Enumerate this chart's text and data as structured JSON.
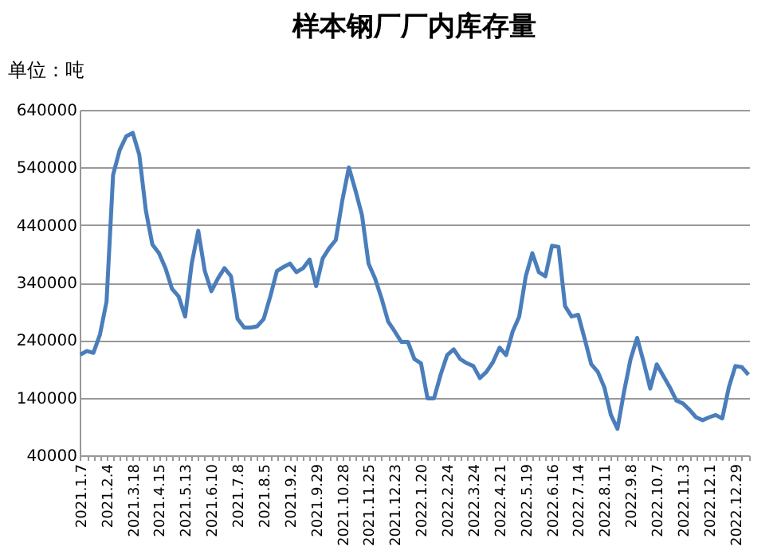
{
  "chart_data": {
    "type": "line",
    "title": "样本钢厂厂内库存量",
    "annotations": [
      "单位：吨"
    ],
    "categories": [
      "2021.1.7",
      null,
      null,
      null,
      "2021.2.4",
      null,
      null,
      null,
      "2021.3.18",
      null,
      null,
      null,
      "2021.4.15",
      null,
      null,
      null,
      "2021.5.13",
      null,
      null,
      null,
      "2021.6.10",
      null,
      null,
      null,
      "2021.7.8",
      null,
      null,
      null,
      "2021.8.5",
      null,
      null,
      null,
      "2021.9.2",
      null,
      null,
      null,
      "2021.9.29",
      null,
      null,
      null,
      "2021.10.28",
      null,
      null,
      null,
      "2021.11.25",
      null,
      null,
      null,
      "2021.12.23",
      null,
      null,
      null,
      "2022.1.20",
      null,
      null,
      null,
      "2022.2.24",
      null,
      null,
      null,
      "2022.3.24",
      null,
      null,
      null,
      "2022.4.21",
      null,
      null,
      null,
      "2022.5.19",
      null,
      null,
      null,
      "2022.6.16",
      null,
      null,
      null,
      "2022.7.14",
      null,
      null,
      null,
      "2022.8.11",
      null,
      null,
      null,
      "2022.9.8",
      null,
      null,
      null,
      "2022.10.7",
      null,
      null,
      null,
      "2022.11.3",
      null,
      null,
      null,
      "2022.12.1",
      null,
      null,
      null,
      "2022.12.29",
      null,
      null
    ],
    "series": [
      {
        "color": "#4a7ebb",
        "values": [
          215000,
          221000,
          218000,
          250000,
          307000,
          527000,
          570000,
          594000,
          600000,
          562000,
          465000,
          406000,
          391000,
          365000,
          329000,
          316000,
          281000,
          373000,
          430000,
          360000,
          325000,
          347000,
          365000,
          351000,
          277000,
          262000,
          262000,
          264000,
          277000,
          316000,
          360000,
          367000,
          373000,
          358000,
          365000,
          380000,
          334000,
          382000,
          400000,
          414000,
          483000,
          540000,
          500000,
          457000,
          373000,
          347000,
          312000,
          272000,
          255000,
          237000,
          237000,
          207000,
          200000,
          139000,
          139000,
          180000,
          214000,
          224000,
          207000,
          200000,
          195000,
          174000,
          185000,
          202000,
          227000,
          214000,
          255000,
          281000,
          351000,
          391000,
          358000,
          351000,
          404000,
          402000,
          299000,
          281000,
          284000,
          242000,
          198000,
          185000,
          158000,
          110000,
          86000,
          150000,
          207000,
          244000,
          202000,
          156000,
          198000,
          178000,
          158000,
          135000,
          130000,
          119000,
          106000,
          101000,
          106000,
          110000,
          104000,
          158000,
          195000,
          193000,
          180000
        ]
      }
    ],
    "ylim": [
      40000,
      640000
    ],
    "yticks": [
      40000,
      140000,
      240000,
      340000,
      440000,
      540000,
      640000
    ],
    "grid": "y",
    "legend": false
  }
}
